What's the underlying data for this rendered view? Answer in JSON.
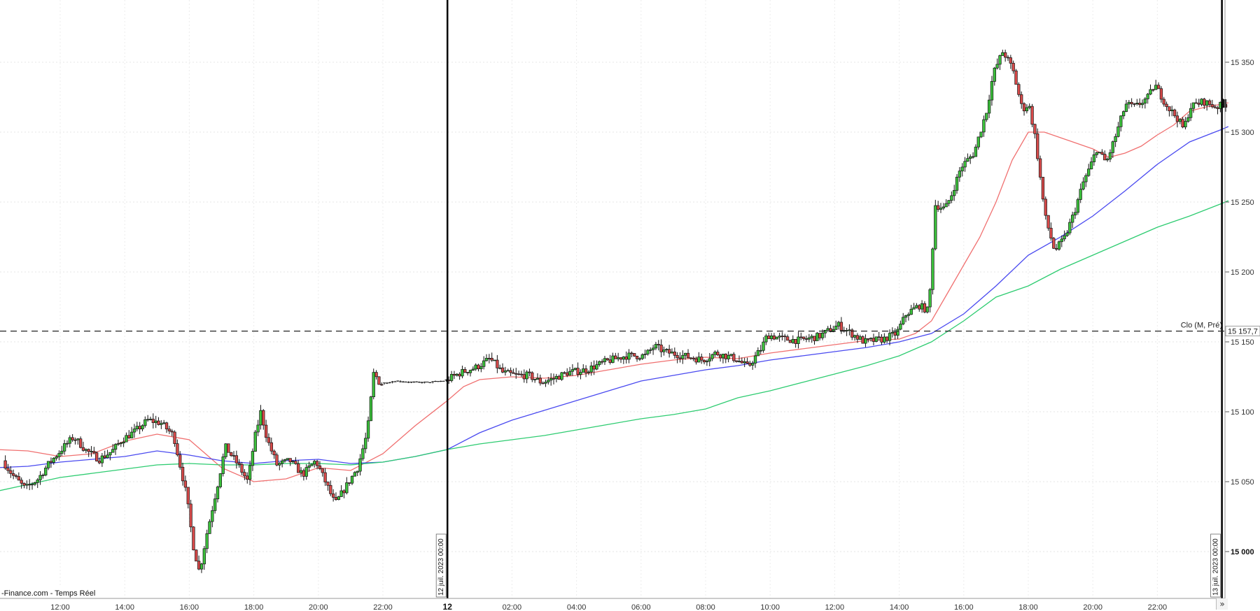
{
  "chart_data": {
    "type": "candlestick",
    "title": "",
    "watermark": "-Finance.com - Temps Réel",
    "y_axis": {
      "range": [
        14975,
        15385
      ],
      "ticks": [
        15000,
        15050,
        15100,
        15150,
        15200,
        15250,
        15300,
        15350
      ],
      "tick_labels": [
        "15 000",
        "15 050",
        "15 100",
        "15 150",
        "15 200",
        "15 250",
        "15 300",
        "15 350"
      ],
      "bold_tick": 15000
    },
    "x_axis": {
      "tick_labels": [
        "12:00",
        "14:00",
        "16:00",
        "18:00",
        "20:00",
        "22:00",
        "12",
        "02:00",
        "04:00",
        "06:00",
        "08:00",
        "10:00",
        "12:00",
        "14:00",
        "16:00",
        "18:00",
        "20:00",
        "22:00"
      ],
      "tick_hours": [
        12,
        14,
        16,
        18,
        20,
        22,
        24,
        26,
        28,
        30,
        32,
        34,
        36,
        38,
        40,
        42,
        44,
        46
      ],
      "day_label": "12"
    },
    "day_separators": [
      {
        "hour": 24,
        "label": "12 juil. 2023 00:00"
      },
      {
        "hour": 48,
        "label": "13 juil. 2023 00:00"
      }
    ],
    "reference_line": {
      "value": 15157.7,
      "label": "Clo (M, Pré)",
      "value_label": "15 157,7"
    },
    "grid": true,
    "ohlc_anchors": [
      [
        10.3,
        15065
      ],
      [
        10.6,
        15055
      ],
      [
        11.0,
        15045
      ],
      [
        11.4,
        15052
      ],
      [
        11.7,
        15062
      ],
      [
        12.2,
        15075
      ],
      [
        12.5,
        15082
      ],
      [
        12.9,
        15072
      ],
      [
        13.3,
        15066
      ],
      [
        13.7,
        15072
      ],
      [
        14.0,
        15080
      ],
      [
        14.4,
        15086
      ],
      [
        14.8,
        15094
      ],
      [
        15.2,
        15092
      ],
      [
        15.6,
        15083
      ],
      [
        16.0,
        15040
      ],
      [
        16.2,
        15005
      ],
      [
        16.4,
        14985
      ],
      [
        16.6,
        15010
      ],
      [
        17.0,
        15052
      ],
      [
        17.2,
        15075
      ],
      [
        17.6,
        15062
      ],
      [
        17.9,
        15050
      ],
      [
        18.1,
        15080
      ],
      [
        18.3,
        15100
      ],
      [
        18.5,
        15080
      ],
      [
        18.8,
        15062
      ],
      [
        19.2,
        15065
      ],
      [
        19.6,
        15055
      ],
      [
        20.0,
        15065
      ],
      [
        20.3,
        15050
      ],
      [
        20.6,
        15034
      ],
      [
        20.9,
        15045
      ],
      [
        21.3,
        15060
      ],
      [
        21.6,
        15085
      ],
      [
        21.8,
        15128
      ],
      [
        22.0,
        15120
      ],
      [
        22.5,
        15122
      ],
      [
        23.0,
        15121
      ],
      [
        23.5,
        15121
      ],
      [
        24.0,
        15122
      ],
      [
        24.5,
        15128
      ],
      [
        25.0,
        15132
      ],
      [
        25.4,
        15138
      ],
      [
        25.8,
        15128
      ],
      [
        26.2,
        15126
      ],
      [
        26.6,
        15126
      ],
      [
        27.0,
        15121
      ],
      [
        27.4,
        15124
      ],
      [
        27.8,
        15128
      ],
      [
        28.4,
        15130
      ],
      [
        29.0,
        15136
      ],
      [
        29.6,
        15140
      ],
      [
        30.2,
        15140
      ],
      [
        30.5,
        15147
      ],
      [
        30.8,
        15143
      ],
      [
        31.4,
        15140
      ],
      [
        32.0,
        15137
      ],
      [
        32.4,
        15142
      ],
      [
        33.0,
        15138
      ],
      [
        33.4,
        15132
      ],
      [
        33.8,
        15145
      ],
      [
        34.0,
        15155
      ],
      [
        34.5,
        15152
      ],
      [
        35.0,
        15151
      ],
      [
        35.6,
        15154
      ],
      [
        36.2,
        15162
      ],
      [
        36.6,
        15156
      ],
      [
        37.0,
        15150
      ],
      [
        37.6,
        15152
      ],
      [
        38.0,
        15156
      ],
      [
        38.3,
        15170
      ],
      [
        38.7,
        15176
      ],
      [
        39.0,
        15172
      ],
      [
        39.2,
        15248
      ],
      [
        39.5,
        15245
      ],
      [
        39.7,
        15255
      ],
      [
        40.0,
        15275
      ],
      [
        40.4,
        15285
      ],
      [
        40.8,
        15316
      ],
      [
        41.0,
        15342
      ],
      [
        41.3,
        15358
      ],
      [
        41.6,
        15345
      ],
      [
        41.9,
        15316
      ],
      [
        42.1,
        15320
      ],
      [
        42.3,
        15296
      ],
      [
        42.6,
        15240
      ],
      [
        42.9,
        15215
      ],
      [
        43.2,
        15224
      ],
      [
        43.5,
        15242
      ],
      [
        43.8,
        15265
      ],
      [
        44.0,
        15275
      ],
      [
        44.2,
        15288
      ],
      [
        44.5,
        15278
      ],
      [
        44.8,
        15298
      ],
      [
        45.1,
        15320
      ],
      [
        45.4,
        15318
      ],
      [
        45.8,
        15325
      ],
      [
        46.0,
        15334
      ],
      [
        46.4,
        15318
      ],
      [
        46.7,
        15310
      ],
      [
        46.9,
        15302
      ],
      [
        47.1,
        15318
      ],
      [
        47.5,
        15322
      ],
      [
        47.9,
        15318
      ],
      [
        48.2,
        15320
      ]
    ],
    "series": [
      {
        "id": "ma-red",
        "color": "#f07070",
        "points": [
          [
            10.0,
            15073
          ],
          [
            11.0,
            15072
          ],
          [
            12.0,
            15068
          ],
          [
            13.0,
            15070
          ],
          [
            14.0,
            15079
          ],
          [
            15.0,
            15084
          ],
          [
            16.0,
            15080
          ],
          [
            16.5,
            15070
          ],
          [
            17.0,
            15060
          ],
          [
            18.0,
            15050
          ],
          [
            19.0,
            15052
          ],
          [
            20.0,
            15060
          ],
          [
            21.0,
            15058
          ],
          [
            22.0,
            15070
          ],
          [
            23.0,
            15090
          ],
          [
            24.0,
            15108
          ],
          [
            24.5,
            15118
          ],
          [
            25.0,
            15123
          ],
          [
            26.0,
            15125
          ],
          [
            27.0,
            15124
          ],
          [
            28.0,
            15126
          ],
          [
            29.0,
            15130
          ],
          [
            30.0,
            15134
          ],
          [
            31.0,
            15137
          ],
          [
            32.0,
            15139
          ],
          [
            33.0,
            15138
          ],
          [
            34.0,
            15142
          ],
          [
            35.0,
            15145
          ],
          [
            36.0,
            15148
          ],
          [
            37.0,
            15151
          ],
          [
            38.0,
            15152
          ],
          [
            38.5,
            15156
          ],
          [
            39.0,
            15165
          ],
          [
            39.5,
            15185
          ],
          [
            40.0,
            15205
          ],
          [
            40.5,
            15225
          ],
          [
            41.0,
            15250
          ],
          [
            41.5,
            15280
          ],
          [
            42.0,
            15300
          ],
          [
            42.5,
            15300
          ],
          [
            43.0,
            15296
          ],
          [
            43.5,
            15292
          ],
          [
            44.0,
            15288
          ],
          [
            44.5,
            15282
          ],
          [
            45.0,
            15285
          ],
          [
            45.5,
            15290
          ],
          [
            46.0,
            15298
          ],
          [
            46.5,
            15305
          ],
          [
            47.0,
            15315
          ],
          [
            47.5,
            15318
          ],
          [
            48.0,
            15320
          ],
          [
            48.2,
            15321
          ]
        ]
      },
      {
        "id": "ma-blue",
        "color": "#4a4af0",
        "points": [
          [
            10.0,
            15060
          ],
          [
            11.0,
            15061
          ],
          [
            12.0,
            15064
          ],
          [
            13.0,
            15066
          ],
          [
            14.0,
            15068
          ],
          [
            15.0,
            15072
          ],
          [
            16.0,
            15069
          ],
          [
            17.0,
            15065
          ],
          [
            18.0,
            15063
          ],
          [
            19.0,
            15065
          ],
          [
            20.0,
            15066
          ],
          [
            21.0,
            15063
          ],
          [
            22.0,
            15064
          ],
          [
            23.0,
            15068
          ],
          [
            24.0,
            15073
          ],
          [
            25.0,
            15085
          ],
          [
            26.0,
            15094
          ],
          [
            27.0,
            15101
          ],
          [
            28.0,
            15108
          ],
          [
            29.0,
            15115
          ],
          [
            30.0,
            15122
          ],
          [
            31.0,
            15126
          ],
          [
            32.0,
            15130
          ],
          [
            33.0,
            15133
          ],
          [
            34.0,
            15137
          ],
          [
            35.0,
            15140
          ],
          [
            36.0,
            15143
          ],
          [
            37.0,
            15146
          ],
          [
            38.0,
            15150
          ],
          [
            39.0,
            15156
          ],
          [
            40.0,
            15170
          ],
          [
            41.0,
            15190
          ],
          [
            42.0,
            15212
          ],
          [
            43.0,
            15225
          ],
          [
            44.0,
            15240
          ],
          [
            45.0,
            15258
          ],
          [
            46.0,
            15277
          ],
          [
            47.0,
            15293
          ],
          [
            48.0,
            15302
          ],
          [
            48.2,
            15304
          ]
        ]
      },
      {
        "id": "ma-green",
        "color": "#2ecc71",
        "points": [
          [
            10.0,
            15043
          ],
          [
            11.0,
            15048
          ],
          [
            12.0,
            15053
          ],
          [
            13.0,
            15056
          ],
          [
            14.0,
            15059
          ],
          [
            15.0,
            15062
          ],
          [
            16.0,
            15063
          ],
          [
            17.0,
            15062
          ],
          [
            18.0,
            15062
          ],
          [
            19.0,
            15063
          ],
          [
            20.0,
            15063
          ],
          [
            21.0,
            15062
          ],
          [
            22.0,
            15064
          ],
          [
            23.0,
            15068
          ],
          [
            24.0,
            15073
          ],
          [
            25.0,
            15077
          ],
          [
            26.0,
            15080
          ],
          [
            27.0,
            15083
          ],
          [
            28.0,
            15087
          ],
          [
            29.0,
            15091
          ],
          [
            30.0,
            15095
          ],
          [
            31.0,
            15098
          ],
          [
            32.0,
            15102
          ],
          [
            33.0,
            15110
          ],
          [
            34.0,
            15115
          ],
          [
            35.0,
            15121
          ],
          [
            36.0,
            15127
          ],
          [
            37.0,
            15133
          ],
          [
            38.0,
            15140
          ],
          [
            39.0,
            15150
          ],
          [
            40.0,
            15165
          ],
          [
            41.0,
            15182
          ],
          [
            42.0,
            15190
          ],
          [
            43.0,
            15202
          ],
          [
            44.0,
            15212
          ],
          [
            45.0,
            15222
          ],
          [
            46.0,
            15232
          ],
          [
            47.0,
            15240
          ],
          [
            48.0,
            15249
          ],
          [
            48.2,
            15251
          ]
        ]
      }
    ]
  }
}
